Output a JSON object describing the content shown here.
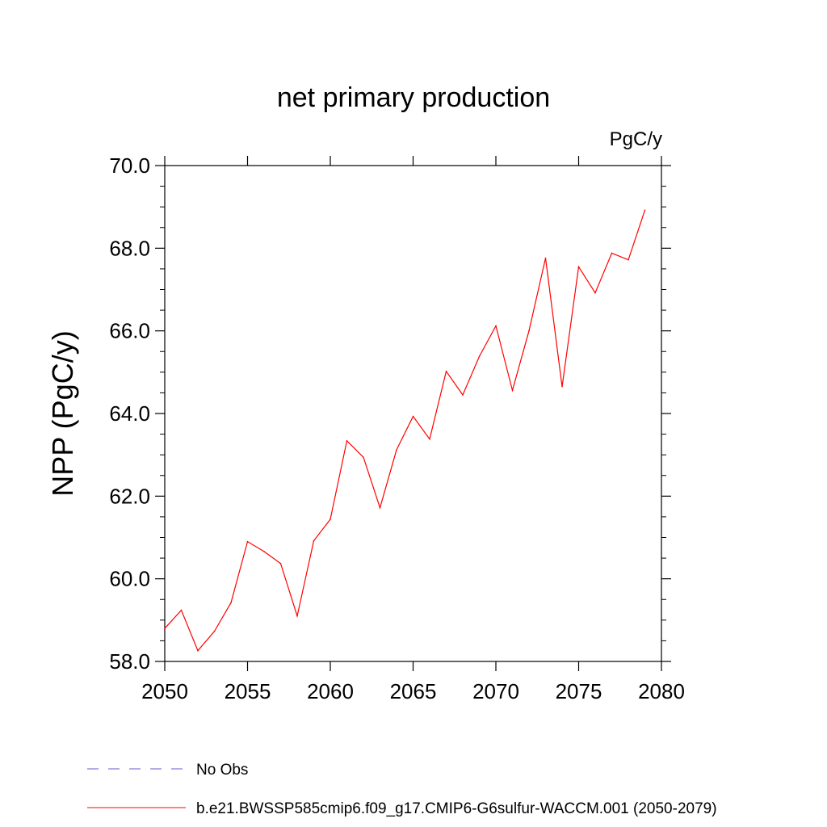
{
  "chart_data": {
    "type": "line",
    "title": "net primary production",
    "units": "PgC/y",
    "xlabel": "",
    "ylabel": "NPP  (PgC/y)",
    "xlim": [
      2050,
      2080
    ],
    "ylim": [
      58.0,
      70.0
    ],
    "x_ticks": [
      2050,
      2055,
      2060,
      2065,
      2070,
      2075,
      2080
    ],
    "x_tick_labels": [
      "2050",
      "2055",
      "2060",
      "2065",
      "2070",
      "2075",
      "2080"
    ],
    "y_ticks": [
      58.0,
      60.0,
      62.0,
      64.0,
      66.0,
      68.0,
      70.0
    ],
    "y_tick_labels": [
      "58.0",
      "60.0",
      "62.0",
      "64.0",
      "66.0",
      "68.0",
      "70.0"
    ],
    "grid": false,
    "legend_position": "bottom",
    "series": [
      {
        "name": "b.e21.BWSSP585cmip6.f09_g17.CMIP6-G6sulfur-WACCM.001 (2050-2079)",
        "color": "#ff0000",
        "dash": "solid",
        "x": [
          2050,
          2051,
          2052,
          2053,
          2054,
          2055,
          2056,
          2057,
          2058,
          2059,
          2060,
          2061,
          2062,
          2063,
          2064,
          2065,
          2066,
          2067,
          2068,
          2069,
          2070,
          2071,
          2072,
          2073,
          2074,
          2075,
          2076,
          2077,
          2078,
          2079
        ],
        "values": [
          58.8,
          59.24,
          58.26,
          58.73,
          59.42,
          60.9,
          60.66,
          60.37,
          59.1,
          60.92,
          61.44,
          63.34,
          62.94,
          61.72,
          63.12,
          63.93,
          63.38,
          65.02,
          64.45,
          65.38,
          66.12,
          64.56,
          66.0,
          67.76,
          64.65,
          67.55,
          66.92,
          67.88,
          67.72,
          68.92
        ]
      },
      {
        "name": "No Obs",
        "color": "#6a5acd",
        "dash": "dashed",
        "x": [],
        "values": []
      }
    ]
  }
}
